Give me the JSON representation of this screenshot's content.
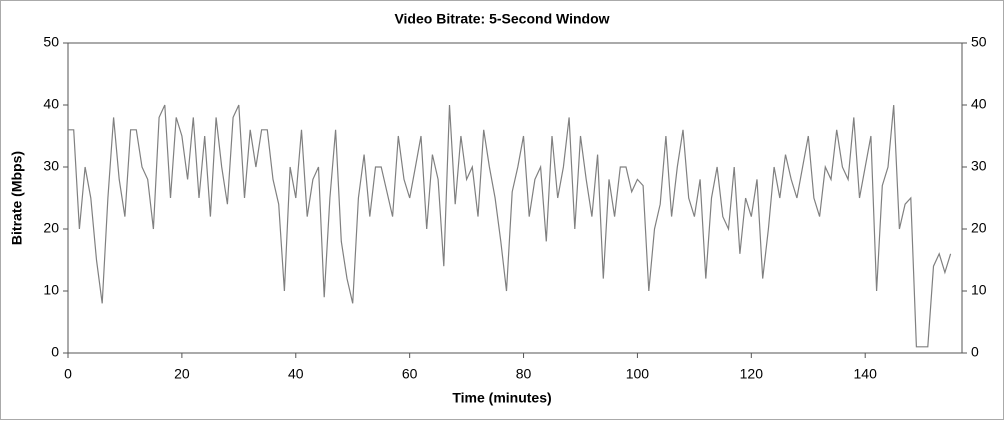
{
  "chart_data": {
    "type": "line",
    "title": "Video Bitrate: 5-Second Window",
    "xlabel": "Time (minutes)",
    "ylabel": "Bitrate (Mbps)",
    "color": "#808080",
    "x": [
      0,
      1,
      2,
      3,
      4,
      5,
      6,
      7,
      8,
      9,
      10,
      11,
      12,
      13,
      14,
      15,
      16,
      17,
      18,
      19,
      20,
      21,
      22,
      23,
      24,
      25,
      26,
      27,
      28,
      29,
      30,
      31,
      32,
      33,
      34,
      35,
      36,
      37,
      38,
      39,
      40,
      41,
      42,
      43,
      44,
      45,
      46,
      47,
      48,
      49,
      50,
      51,
      52,
      53,
      54,
      55,
      56,
      57,
      58,
      59,
      60,
      61,
      62,
      63,
      64,
      65,
      66,
      67,
      68,
      69,
      70,
      71,
      72,
      73,
      74,
      75,
      76,
      77,
      78,
      79,
      80,
      81,
      82,
      83,
      84,
      85,
      86,
      87,
      88,
      89,
      90,
      91,
      92,
      93,
      94,
      95,
      96,
      97,
      98,
      99,
      100,
      101,
      102,
      103,
      104,
      105,
      106,
      107,
      108,
      109,
      110,
      111,
      112,
      113,
      114,
      115,
      116,
      117,
      118,
      119,
      120,
      121,
      122,
      123,
      124,
      125,
      126,
      127,
      128,
      129,
      130,
      131,
      132,
      133,
      134,
      135,
      136,
      137,
      138,
      139,
      140,
      141,
      142,
      143,
      144,
      145,
      146,
      147,
      148,
      149,
      150,
      151,
      152,
      153,
      154,
      155
    ],
    "values": [
      36,
      36,
      20,
      30,
      25,
      15,
      8,
      25,
      38,
      28,
      22,
      36,
      36,
      30,
      28,
      20,
      38,
      40,
      25,
      38,
      35,
      28,
      38,
      25,
      35,
      22,
      38,
      30,
      24,
      38,
      40,
      25,
      36,
      30,
      36,
      36,
      28,
      24,
      10,
      30,
      25,
      36,
      22,
      28,
      30,
      9,
      25,
      36,
      18,
      12,
      8,
      25,
      32,
      22,
      30,
      30,
      26,
      22,
      35,
      28,
      25,
      30,
      35,
      20,
      32,
      28,
      14,
      40,
      24,
      35,
      28,
      30,
      22,
      36,
      30,
      25,
      18,
      10,
      26,
      30,
      35,
      22,
      28,
      30,
      18,
      35,
      25,
      30,
      38,
      20,
      35,
      28,
      22,
      32,
      12,
      28,
      22,
      30,
      30,
      26,
      28,
      27,
      10,
      20,
      24,
      35,
      22,
      30,
      36,
      25,
      22,
      28,
      12,
      25,
      30,
      22,
      20,
      30,
      16,
      25,
      22,
      28,
      12,
      20,
      30,
      25,
      32,
      28,
      25,
      30,
      35,
      25,
      22,
      30,
      28,
      36,
      30,
      28,
      38,
      25,
      30,
      35,
      10,
      27,
      30,
      40,
      20,
      24,
      25,
      1,
      1,
      1,
      14,
      16,
      13,
      16
    ],
    "xlim": [
      0,
      157
    ],
    "xticks": [
      0,
      20,
      40,
      60,
      80,
      100,
      120,
      140
    ],
    "ylim": [
      0,
      50
    ],
    "yticks": [
      0,
      10,
      20,
      30,
      40,
      50
    ],
    "y2lim": [
      0,
      50
    ],
    "y2ticks": [
      0,
      10,
      20,
      30,
      40,
      50
    ]
  }
}
